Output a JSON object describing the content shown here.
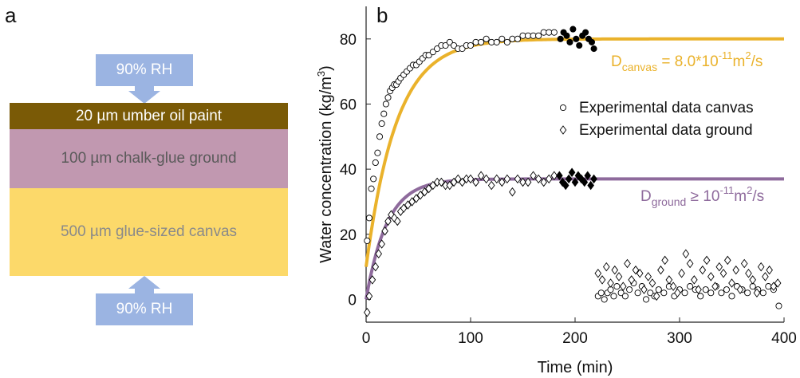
{
  "panel_a": {
    "letter": "a",
    "top_label": "90% RH",
    "bottom_label": "90% RH",
    "layers": [
      {
        "label": "20 µm umber oil paint",
        "color": "#7a5a06",
        "text_color": "#ffffff"
      },
      {
        "label": "100 µm chalk-glue ground",
        "color": "#c198b0",
        "text_color": "#5a5a5a"
      },
      {
        "label": "500 µm glue-sized canvas",
        "color": "#fcd96a",
        "text_color": "#8a8a8a"
      }
    ],
    "colors": {
      "rh_box": "#9bb4e2"
    }
  },
  "panel_b": {
    "letter": "b",
    "annotations": {
      "canvas": {
        "d": "D",
        "sub": "canvas",
        "rest": "= 8.0*10",
        "exp": "-11",
        "unit": "m",
        "unit_exp": "2",
        "tail": "/s",
        "color": "#eab22b"
      },
      "ground": {
        "d": "D",
        "sub": "ground",
        "rest": "≥ 10",
        "exp": "-11",
        "unit": "m",
        "unit_exp": "2",
        "tail": "/s",
        "color": "#8e6a9c"
      }
    }
  },
  "chart_data": {
    "type": "scatter",
    "title": "",
    "xlabel": "Time (min)",
    "ylabel_main": "Water concentration (kg/m",
    "ylabel_sup": "3",
    "ylabel_end": ")",
    "xlim": [
      0,
      400
    ],
    "ylim": [
      -7,
      90
    ],
    "xticks": [
      0,
      100,
      200,
      300,
      400
    ],
    "yticks": [
      0,
      20,
      40,
      60,
      80
    ],
    "grid": false,
    "legend_position": "middle-right",
    "series": [
      {
        "name": "Experimental data canvas",
        "marker": "circle-open",
        "x": [
          1,
          3,
          5,
          7,
          9,
          11,
          13,
          15,
          17,
          19,
          21,
          23,
          25,
          27,
          29,
          31,
          33,
          36,
          39,
          42,
          45,
          48,
          51,
          54,
          57,
          60,
          64,
          68,
          72,
          76,
          80,
          84,
          88,
          92,
          96,
          100,
          105,
          110,
          115,
          120,
          125,
          130,
          135,
          140,
          145,
          150,
          155,
          160,
          165,
          170,
          175,
          180
        ],
        "y": [
          18,
          25,
          34,
          37,
          42,
          45,
          50,
          54,
          57,
          60,
          62,
          64,
          65,
          66,
          66,
          67,
          68,
          69,
          70,
          71,
          72,
          72,
          73,
          74,
          75,
          75,
          76,
          77,
          78,
          78,
          79,
          78,
          77,
          77,
          78,
          78,
          79,
          79,
          80,
          79,
          79,
          80,
          79,
          80,
          80,
          81,
          81,
          81,
          81,
          82,
          82,
          82
        ]
      },
      {
        "name": "",
        "marker": "circle-filled",
        "x": [
          186,
          189,
          192,
          195,
          198,
          201,
          204,
          207,
          210,
          213,
          216,
          218
        ],
        "y": [
          80,
          82,
          81,
          79,
          83,
          80,
          78,
          81,
          82,
          80,
          79,
          77
        ]
      },
      {
        "name": "",
        "marker": "circle-open",
        "x": [
          222,
          225,
          228,
          231,
          234,
          237,
          240,
          244,
          248,
          252,
          256,
          260,
          264,
          268,
          272,
          276,
          280,
          285,
          290,
          295,
          300,
          305,
          310,
          315,
          320,
          325,
          330,
          335,
          340,
          345,
          350,
          355,
          360,
          365,
          370,
          375,
          380,
          385,
          390,
          395
        ],
        "y": [
          1,
          2,
          0,
          2,
          3,
          1,
          4,
          2,
          1,
          3,
          5,
          2,
          4,
          0,
          2,
          1,
          3,
          2,
          4,
          1,
          3,
          2,
          4,
          3,
          1,
          3,
          2,
          4,
          2,
          3,
          1,
          4,
          3,
          2,
          4,
          3,
          2,
          4,
          3,
          -2
        ]
      },
      {
        "name": "Experimental data ground",
        "marker": "diamond-open",
        "x": [
          1,
          3,
          6,
          9,
          12,
          15,
          18,
          21,
          24,
          27,
          30,
          33,
          36,
          40,
          44,
          48,
          52,
          56,
          60,
          64,
          68,
          72,
          76,
          80,
          84,
          88,
          92,
          96,
          100,
          105,
          110,
          115,
          120,
          125,
          130,
          135,
          140,
          145,
          150,
          155,
          160,
          165,
          170,
          175,
          180
        ],
        "y": [
          -4,
          1,
          6,
          10,
          14,
          17,
          21,
          24,
          26,
          25,
          24,
          27,
          28,
          29,
          30,
          31,
          32,
          33,
          34,
          35,
          36,
          36,
          35,
          35,
          36,
          37,
          36,
          37,
          37,
          36,
          38,
          37,
          35,
          37,
          36,
          37,
          33,
          37,
          36,
          36,
          38,
          37,
          36,
          37,
          38
        ]
      },
      {
        "name": "",
        "marker": "diamond-filled",
        "x": [
          185,
          188,
          191,
          194,
          197,
          200,
          203,
          206,
          209,
          212,
          215,
          218
        ],
        "y": [
          38,
          36,
          35,
          37,
          39,
          36,
          38,
          37,
          36,
          38,
          35,
          37
        ]
      },
      {
        "name": "",
        "marker": "diamond-open",
        "x": [
          222,
          226,
          230,
          234,
          238,
          242,
          246,
          250,
          254,
          258,
          262,
          266,
          270,
          274,
          278,
          282,
          286,
          290,
          294,
          298,
          302,
          306,
          310,
          314,
          318,
          322,
          326,
          330,
          334,
          338,
          342,
          346,
          350,
          354,
          358,
          362,
          366,
          370,
          374,
          378,
          382,
          386,
          390,
          394
        ],
        "y": [
          8,
          6,
          10,
          5,
          9,
          7,
          4,
          11,
          6,
          9,
          8,
          3,
          7,
          5,
          1,
          9,
          12,
          6,
          4,
          2,
          8,
          14,
          11,
          6,
          3,
          9,
          12,
          7,
          4,
          10,
          8,
          12,
          5,
          9,
          3,
          11,
          8,
          6,
          2,
          10,
          7,
          9,
          4,
          5
        ]
      }
    ],
    "fits": [
      {
        "name": "canvas fit",
        "color": "#eab22b",
        "formula": "exp_rise",
        "start": 10,
        "end": 80,
        "tau": 29,
        "xmax": 400
      },
      {
        "name": "ground fit",
        "color": "#8e6a9c",
        "formula": "exp_rise",
        "start": 0,
        "end": 37,
        "tau": 20,
        "xmax": 400
      }
    ]
  }
}
